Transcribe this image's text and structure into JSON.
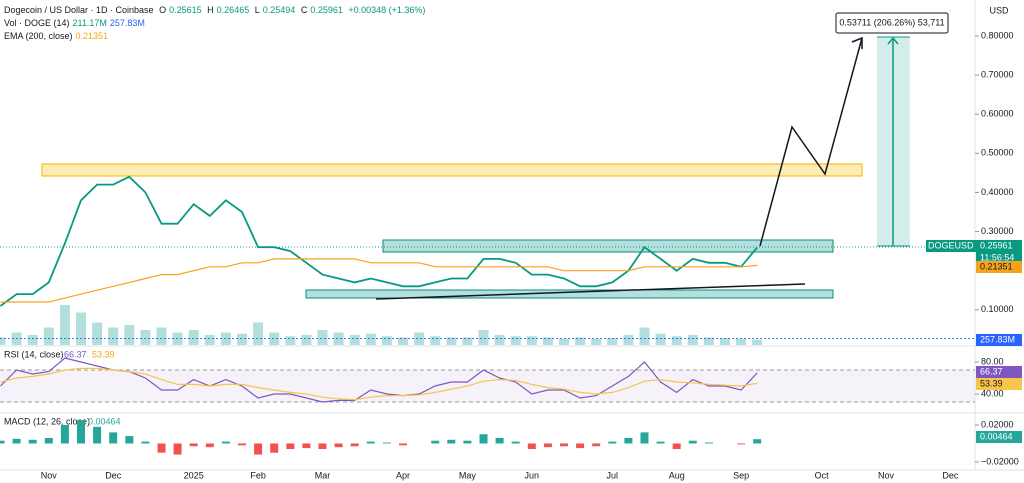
{
  "legend": {
    "title": "Dogecoin / US Dollar · 1D · Coinbase",
    "o_label": "O",
    "o": 0.25615,
    "h_label": "H",
    "h": 0.26465,
    "l_label": "L",
    "l": 0.25494,
    "c_label": "C",
    "c": 0.25961,
    "change": "+0.00348 (+1.36%)",
    "vol_title": "Vol · DOGE (14)",
    "vol_value": "211.17M",
    "vol_ma": "257.83M",
    "ema_title": "EMA (200, close)",
    "ema_value": 0.21351
  },
  "currency": "USD",
  "last_price_tag": {
    "symbol": "DOGEUSD",
    "value": 0.25961,
    "countdown": "11:56:54"
  },
  "measure_label": "0.53711 (206.26%) 53,711",
  "chart_data": [
    {
      "type": "line",
      "log": false,
      "categories": [
        null,
        null,
        null,
        "Nov",
        null,
        null,
        null,
        "Dec",
        null,
        null,
        null,
        null,
        "2025",
        null,
        null,
        null,
        "Feb",
        null,
        null,
        null,
        "Mar",
        null,
        null,
        null,
        null,
        "Apr",
        null,
        null,
        null,
        "May",
        null,
        null,
        null,
        "Jun",
        null,
        null,
        null,
        null,
        "Jul",
        null,
        null,
        null,
        "Aug",
        null,
        null,
        null,
        "Sep",
        null,
        null,
        null,
        null,
        "Oct",
        null,
        null,
        null,
        "Nov",
        null,
        null,
        null,
        "Dec",
        null,
        null
      ],
      "series": [
        {
          "name": "DOGEUSD",
          "color": "#089981",
          "values": [
            0.11,
            0.14,
            0.14,
            0.17,
            0.27,
            0.38,
            0.42,
            0.42,
            0.44,
            0.4,
            0.32,
            0.32,
            0.37,
            0.34,
            0.38,
            0.35,
            0.26,
            0.26,
            0.25,
            0.22,
            0.19,
            0.18,
            0.17,
            0.18,
            0.17,
            0.16,
            0.16,
            0.17,
            0.18,
            0.18,
            0.23,
            0.23,
            0.22,
            0.19,
            0.19,
            0.18,
            0.16,
            0.16,
            0.17,
            0.2,
            0.26,
            0.23,
            0.2,
            0.23,
            0.22,
            0.22,
            0.21,
            0.25961,
            null,
            null,
            null,
            null,
            null,
            null,
            null,
            null,
            null,
            null,
            null,
            null,
            null,
            null
          ]
        },
        {
          "name": "EMA (200, close)",
          "color": "#f7a21b",
          "values": [
            0.12,
            0.12,
            0.12,
            0.12,
            0.13,
            0.14,
            0.15,
            0.16,
            0.17,
            0.18,
            0.19,
            0.19,
            0.2,
            0.21,
            0.21,
            0.22,
            0.22,
            0.23,
            0.23,
            0.23,
            0.23,
            0.23,
            0.23,
            0.22,
            0.22,
            0.22,
            0.22,
            0.21,
            0.21,
            0.21,
            0.21,
            0.21,
            0.21,
            0.21,
            0.21,
            0.2,
            0.2,
            0.2,
            0.2,
            0.2,
            0.21,
            0.21,
            0.21,
            0.21,
            0.21,
            0.21,
            0.21,
            0.21351,
            null,
            null,
            null,
            null,
            null,
            null,
            null,
            null,
            null,
            null,
            null,
            null,
            null,
            null
          ]
        }
      ],
      "ylim": [
        0.01,
        0.8919
      ],
      "yticks": [
        {
          "value": 0.1,
          "label": "0.10000"
        },
        {
          "value": 0.3,
          "label": "0.30000"
        },
        {
          "value": 0.4,
          "label": "0.40000"
        },
        {
          "value": 0.5,
          "label": "0.50000"
        },
        {
          "value": 0.6,
          "label": "0.60000"
        },
        {
          "value": 0.7,
          "label": "0.70000"
        },
        {
          "value": 0.8,
          "label": "0.80000"
        }
      ],
      "grid": false
    },
    {
      "type": "bar",
      "color": "#b2dfdb",
      "ylim": [
        0,
        2400
      ],
      "values": [
        300,
        500,
        400,
        700,
        1600,
        1300,
        900,
        700,
        800,
        600,
        700,
        500,
        600,
        400,
        500,
        450,
        900,
        500,
        350,
        400,
        600,
        500,
        400,
        450,
        350,
        300,
        500,
        350,
        300,
        300,
        600,
        400,
        350,
        350,
        300,
        250,
        300,
        250,
        280,
        400,
        700,
        450,
        350,
        400,
        300,
        280,
        250,
        211.17
      ],
      "ma_value": 257.83,
      "ma_label": "257.83M"
    },
    {
      "type": "line",
      "title": "RSI (14, close)",
      "ylim": [
        17.5,
        97.5
      ],
      "yticks": [
        {
          "value": 80,
          "label": "80.00"
        },
        {
          "value": 40,
          "label": "40.00"
        }
      ],
      "series": [
        {
          "name": "RSI",
          "color": "#7e57c2",
          "values": [
            50,
            70,
            65,
            68,
            85,
            80,
            75,
            70,
            68,
            60,
            45,
            45,
            58,
            50,
            58,
            50,
            35,
            40,
            40,
            35,
            30,
            32,
            32,
            45,
            40,
            38,
            40,
            50,
            55,
            55,
            70,
            60,
            55,
            40,
            45,
            45,
            35,
            38,
            50,
            62,
            80,
            55,
            42,
            58,
            50,
            50,
            45,
            66.37
          ]
        },
        {
          "name": "Signal",
          "color": "#f7c548",
          "values": [
            55,
            60,
            62,
            65,
            70,
            72,
            72,
            70,
            68,
            65,
            58,
            52,
            52,
            50,
            52,
            52,
            48,
            45,
            42,
            40,
            36,
            34,
            33,
            36,
            38,
            38,
            39,
            42,
            46,
            50,
            56,
            58,
            57,
            52,
            48,
            46,
            42,
            40,
            42,
            48,
            56,
            58,
            55,
            54,
            52,
            51,
            50,
            53.39
          ]
        }
      ]
    },
    {
      "type": "histogram",
      "title": "MACD (12, 26, close)",
      "ylim": [
        -0.0287,
        0.0319
      ],
      "up_color": "#26a69a",
      "down_color": "#ef5350",
      "yticks": [
        {
          "value": 0.02,
          "label": "0.02000"
        },
        {
          "value": -0.02,
          "label": "−0.02000"
        }
      ],
      "values": [
        0.003,
        0.005,
        0.004,
        0.006,
        0.02,
        0.025,
        0.018,
        0.012,
        0.008,
        0.002,
        -0.01,
        -0.012,
        -0.003,
        -0.004,
        0.002,
        -0.002,
        -0.012,
        -0.01,
        -0.006,
        -0.005,
        -0.006,
        -0.004,
        -0.003,
        0.002,
        0.001,
        -0.002,
        0.0,
        0.003,
        0.004,
        0.003,
        0.01,
        0.006,
        0.002,
        -0.006,
        -0.004,
        -0.003,
        -0.005,
        -0.003,
        0.002,
        0.006,
        0.012,
        0.002,
        -0.006,
        0.003,
        0.001,
        0.0,
        -0.001,
        0.00464
      ]
    }
  ]
}
